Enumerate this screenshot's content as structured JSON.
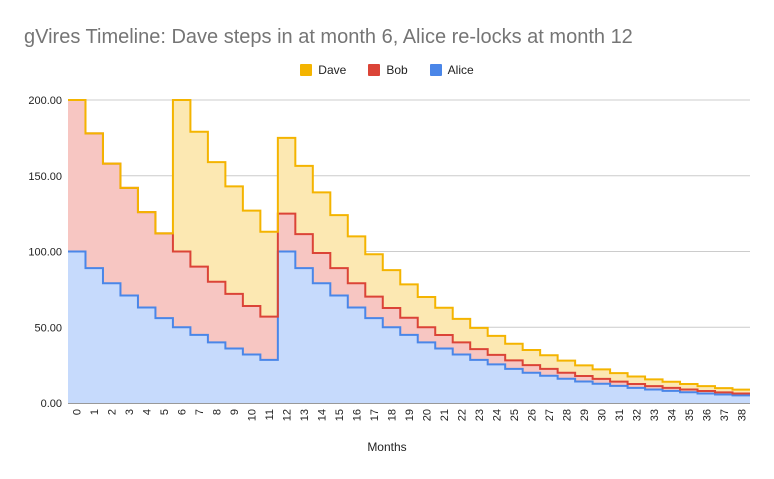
{
  "chart_data": {
    "type": "area",
    "title": "gVires Timeline: Dave steps in at month 6, Alice re-locks at month 12",
    "xlabel": "Months",
    "ylabel": "",
    "ylim": [
      0,
      200
    ],
    "y_ticks": [
      "0.00",
      "50.00",
      "100.00",
      "150.00",
      "200.00"
    ],
    "grid": true,
    "legend_position": "top",
    "stacked": true,
    "step": true,
    "x": [
      0,
      1,
      2,
      3,
      4,
      5,
      6,
      7,
      8,
      9,
      10,
      11,
      12,
      13,
      14,
      15,
      16,
      17,
      18,
      19,
      20,
      21,
      22,
      23,
      24,
      25,
      26,
      27,
      28,
      29,
      30,
      31,
      32,
      33,
      34,
      35,
      36,
      37,
      38
    ],
    "series": [
      {
        "name": "Alice",
        "line_color": "#4a86e8",
        "fill_color": "#c6dafc",
        "values": [
          100,
          89,
          79,
          71,
          63,
          56,
          50,
          45,
          40,
          36,
          32,
          28.5,
          100,
          89,
          79,
          71,
          63,
          56,
          50,
          45,
          40,
          36,
          32,
          28.5,
          25.5,
          22.5,
          20,
          18,
          16,
          14.2,
          12.7,
          11.3,
          10,
          8.9,
          8,
          7.1,
          6.3,
          5.6,
          5
        ]
      },
      {
        "name": "Bob",
        "line_color": "#db4437",
        "fill_color": "#f7c6c2",
        "values": [
          100,
          89,
          79,
          71,
          63,
          56,
          50,
          45,
          40,
          36,
          32,
          28.5,
          25,
          22.5,
          20,
          18,
          16,
          14.2,
          12.7,
          11.3,
          10,
          8.9,
          8,
          7.1,
          6.3,
          5.6,
          5,
          4.5,
          4,
          3.6,
          3.2,
          2.8,
          2.5,
          2.2,
          2,
          1.8,
          1.6,
          1.4,
          1.3
        ]
      },
      {
        "name": "Dave",
        "line_color": "#f4b400",
        "fill_color": "#fce8b2",
        "values": [
          0,
          0,
          0,
          0,
          0,
          0,
          100,
          89,
          79,
          71,
          63,
          56,
          50,
          45,
          40,
          35,
          31,
          28,
          25,
          22,
          20,
          18,
          15.5,
          14,
          12.5,
          11,
          10,
          9,
          8,
          7,
          6.3,
          5.6,
          5,
          4.5,
          4,
          3.6,
          3.2,
          2.8,
          2.5
        ]
      }
    ],
    "legend_order": [
      "Dave",
      "Bob",
      "Alice"
    ]
  }
}
